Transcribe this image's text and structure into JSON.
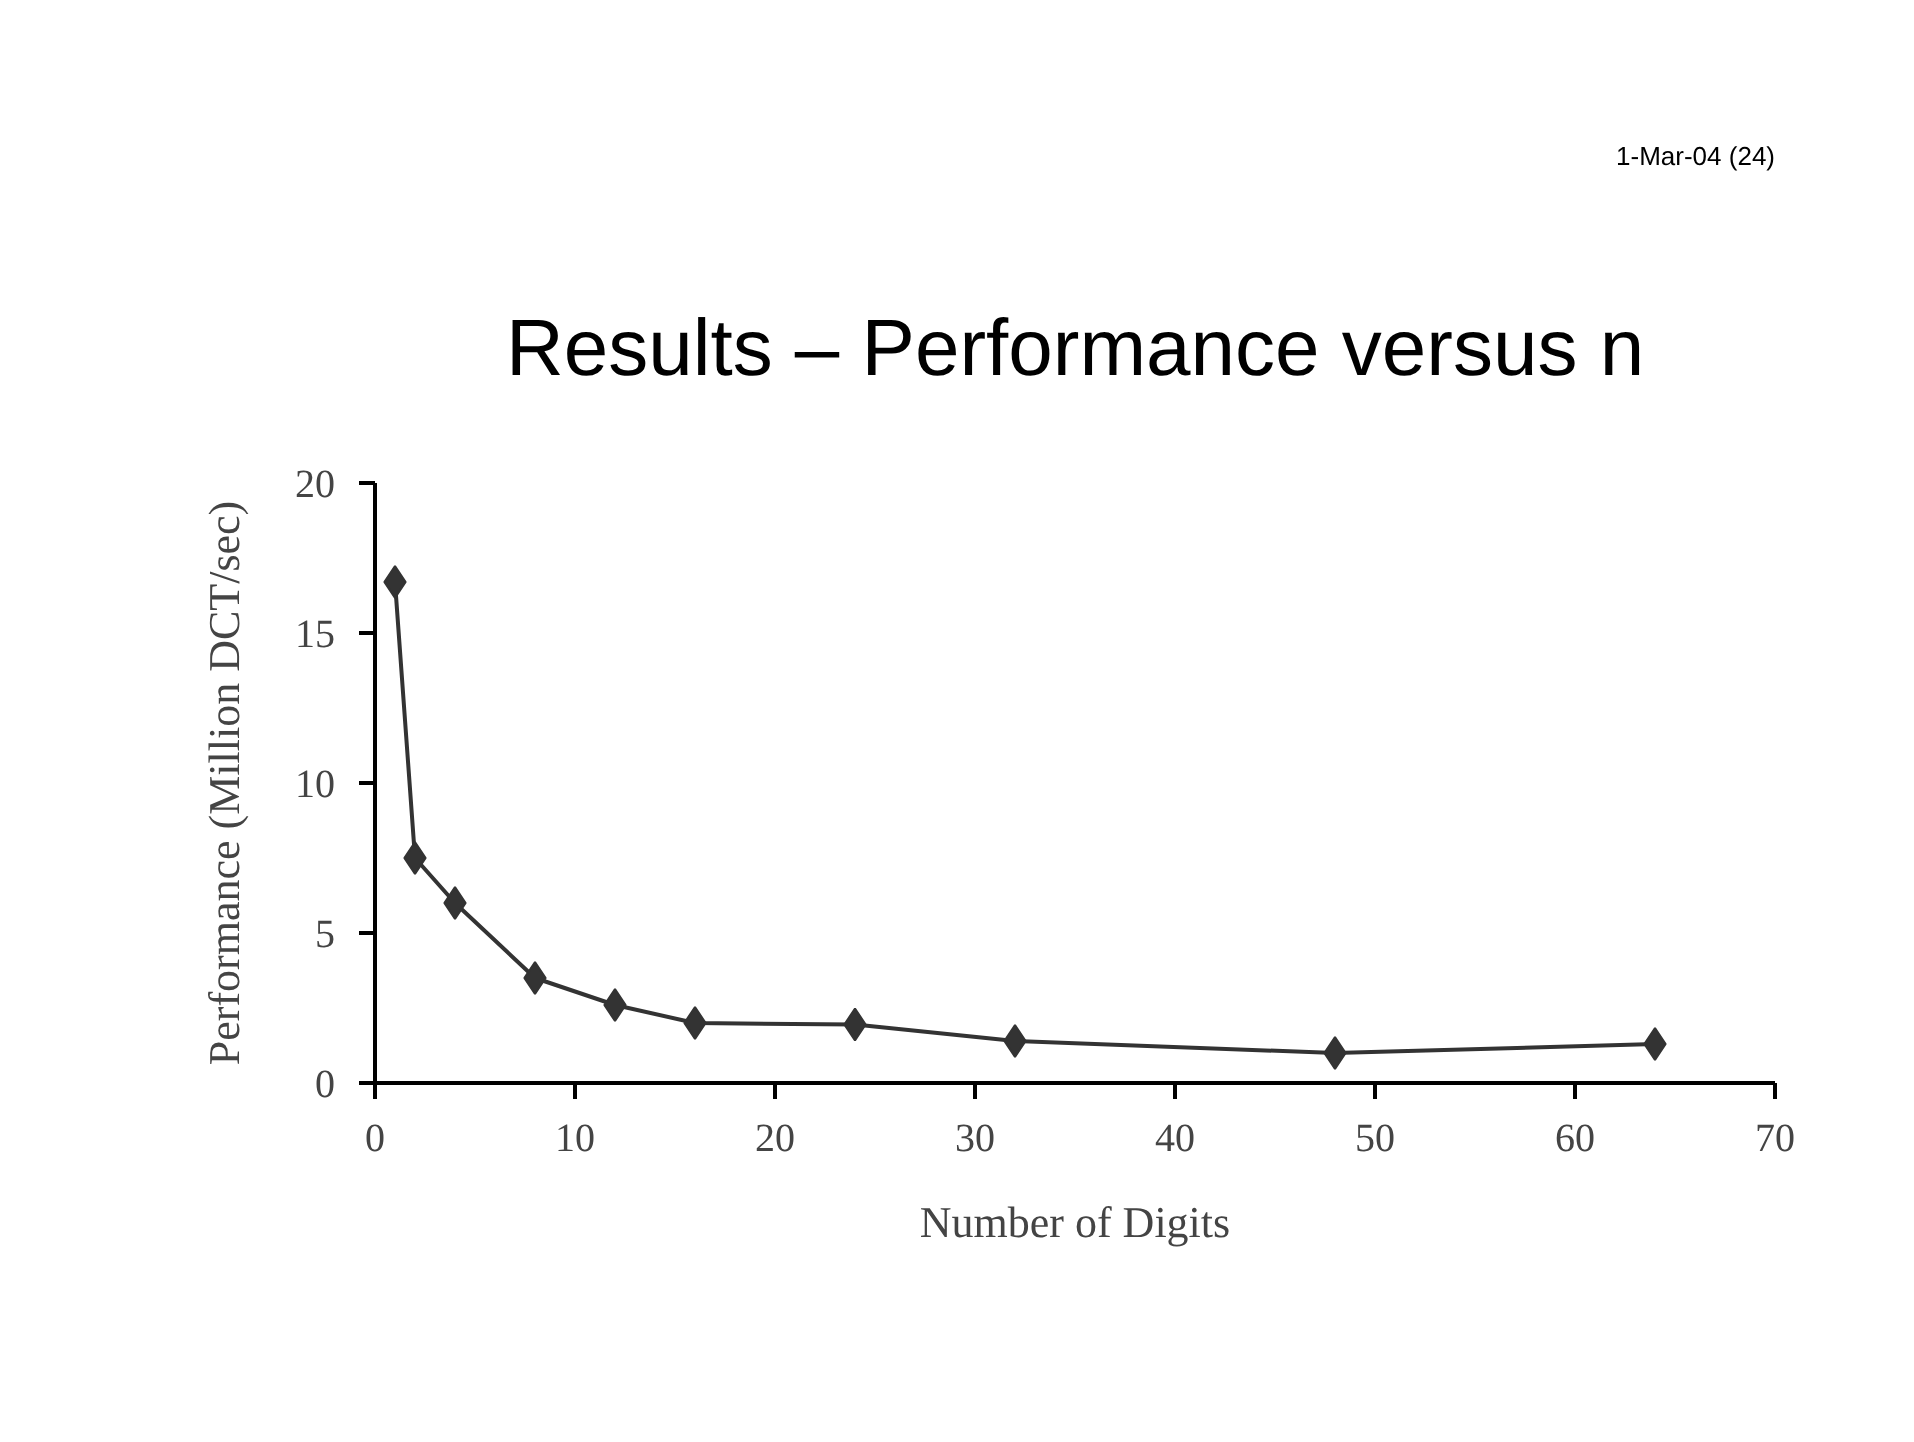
{
  "chart_data": {
    "type": "line",
    "title": "Results – Performance versus n",
    "annotations": [
      "1-Mar-04 (24)"
    ],
    "xlabel": "Number of Digits",
    "ylabel": "Performance (Million DCT/sec)",
    "x": [
      1,
      2,
      4,
      8,
      12,
      16,
      24,
      32,
      48,
      64
    ],
    "series": [
      {
        "color": "#333333",
        "values": [
          16.7,
          7.5,
          6.0,
          3.5,
          2.6,
          2.0,
          1.95,
          1.4,
          1.0,
          1.3
        ]
      }
    ],
    "xlim": [
      0,
      70
    ],
    "xticks": [
      0,
      10,
      20,
      30,
      40,
      50,
      60,
      70
    ],
    "ylim": [
      0,
      20
    ],
    "yticks": [
      0,
      5,
      10,
      15,
      20
    ],
    "marker": "diamond",
    "line_style": "solid"
  }
}
